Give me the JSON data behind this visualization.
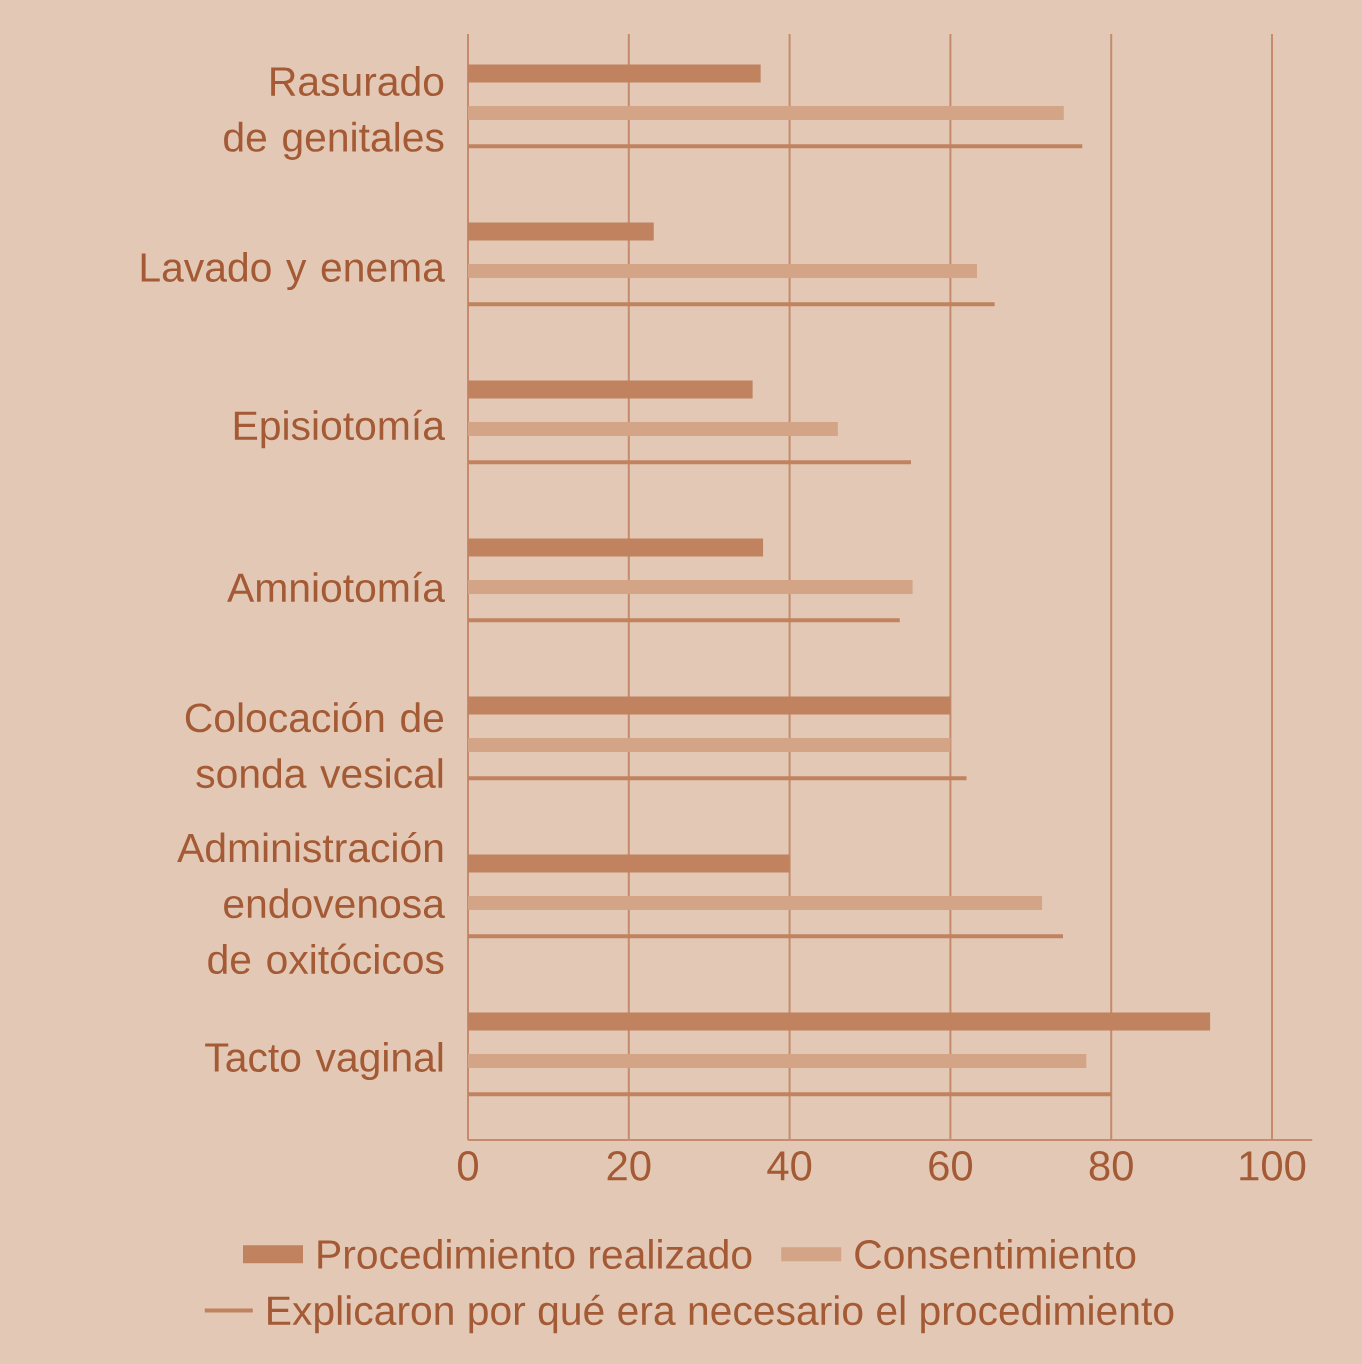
{
  "chart_data": {
    "type": "bar",
    "orientation": "horizontal",
    "categories": [
      "Rasurado de genitales",
      "Lavado y enema",
      "Episiotomía",
      "Amniotomía",
      "Colocación de sonda vesical",
      "Administración endovenosa de oxitócicos",
      "Tacto vaginal"
    ],
    "series": [
      {
        "name": "Procedimiento realizado",
        "color": "#c0825f",
        "values": [
          36.4,
          23.1,
          35.4,
          36.7,
          60,
          40,
          92.3
        ]
      },
      {
        "name": "Consentimiento",
        "color": "#d3a486",
        "values": [
          74.1,
          63.3,
          46,
          55.3,
          60,
          71.4,
          76.9
        ]
      },
      {
        "name": "Explicaron por qué era necesario el procedimiento",
        "color": "#c0825f",
        "values": [
          76.4,
          65.5,
          55.1,
          53.7,
          62,
          74,
          80
        ]
      }
    ],
    "xlim": [
      0,
      105
    ],
    "xticks": [
      0,
      20,
      40,
      60,
      80,
      100
    ],
    "grid": "x",
    "legend": "bottom"
  }
}
